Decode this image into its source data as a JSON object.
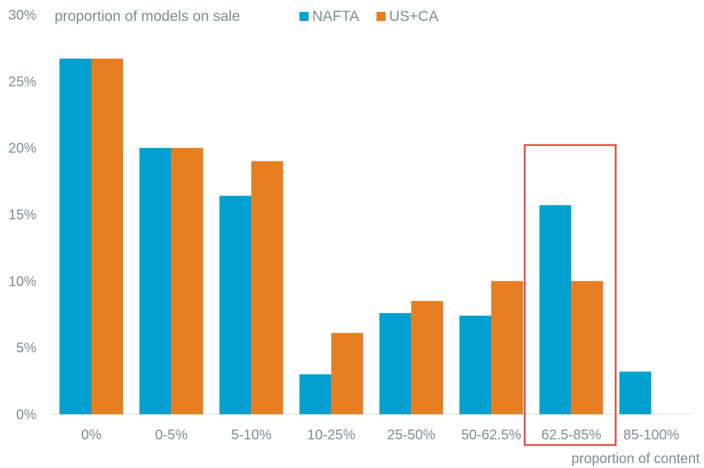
{
  "chart_data": {
    "type": "bar",
    "title": "",
    "ylabel": "proportion of models on sale",
    "xlabel": "proportion of content",
    "categories": [
      "0%",
      "0-5%",
      "5-10%",
      "10-25%",
      "25-50%",
      "50-62.5%",
      "62.5-85%",
      "85-100%"
    ],
    "series": [
      {
        "name": "NAFTA",
        "color": "#00A0D0",
        "values": [
          26.7,
          20.0,
          16.4,
          3.0,
          7.6,
          7.4,
          15.7,
          3.2
        ]
      },
      {
        "name": "US+CA",
        "color": "#E67E22",
        "values": [
          26.7,
          20.0,
          19.0,
          6.1,
          8.5,
          10.0,
          10.0,
          0
        ]
      }
    ],
    "ylim": [
      0,
      30
    ],
    "yticks": [
      0,
      5,
      10,
      15,
      20,
      25,
      30
    ],
    "ytick_labels": [
      "0%",
      "5%",
      "10%",
      "15%",
      "20%",
      "25%",
      "30%"
    ],
    "grid": false,
    "legend_position": "top",
    "highlight": {
      "category": "62.5-85%",
      "color": "#E0483B"
    }
  }
}
